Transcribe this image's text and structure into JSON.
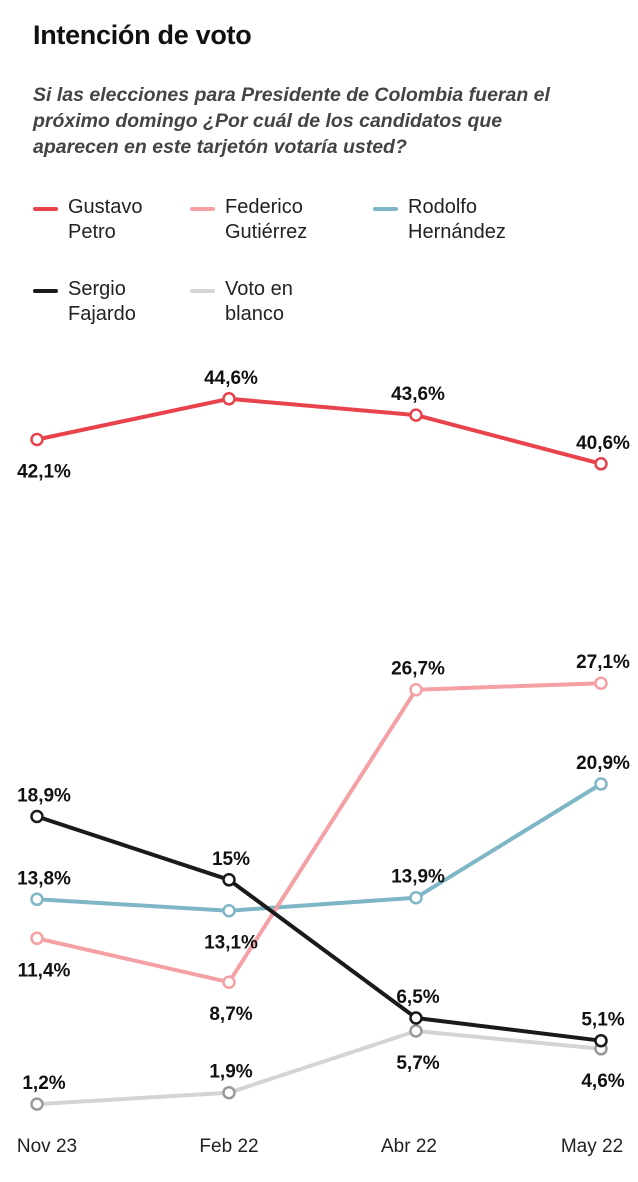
{
  "header": {
    "title": "Intención de voto",
    "subtitle": "Si las elecciones para Presidente de Colombia fueran el próximo domingo ¿Por cuál de los candidatos que aparecen en este tarjetón votaría usted?"
  },
  "legend": [
    {
      "line1": "Gustavo",
      "line2": "Petro",
      "color": "#e8424c"
    },
    {
      "line1": "Federico",
      "line2": "Gutiérrez",
      "color": "#f4a0a4"
    },
    {
      "line1": "Rodolfo",
      "line2": "Hernández",
      "color": "#7fb6c6"
    },
    {
      "line1": "Sergio",
      "line2": "Fajardo",
      "color": "#1a1a1a"
    },
    {
      "line1": "Voto en",
      "line2": "blanco",
      "color": "#d4d4d4"
    }
  ],
  "chart_data": {
    "type": "line",
    "categories": [
      "Nov 23",
      "Feb 22",
      "Abr 22",
      "May 22"
    ],
    "grid": false,
    "series": [
      {
        "name": "Gustavo Petro",
        "color": "#e8424c",
        "values": [
          42.1,
          44.6,
          43.6,
          40.6
        ],
        "labels": [
          "42,1%",
          "44,6%",
          "43,6%",
          "40,6%"
        ]
      },
      {
        "name": "Federico Gutiérrez",
        "color": "#f4a0a4",
        "values": [
          11.4,
          8.7,
          26.7,
          27.1
        ],
        "labels": [
          "11,4%",
          "8,7%",
          "26,7%",
          "27,1%"
        ]
      },
      {
        "name": "Rodolfo Hernández",
        "color": "#7fb6c6",
        "values": [
          13.8,
          13.1,
          13.9,
          20.9
        ],
        "labels": [
          "13,8%",
          "13,1%",
          "13,9%",
          "20,9%"
        ]
      },
      {
        "name": "Sergio Fajardo",
        "color": "#1a1a1a",
        "values": [
          18.9,
          15,
          6.5,
          5.1
        ],
        "labels": [
          "18,9%",
          "15%",
          "6,5%",
          "5,1%"
        ]
      },
      {
        "name": "Voto en blanco",
        "color": "#d4d4d4",
        "marker_color": "#999999",
        "values": [
          1.2,
          1.9,
          5.7,
          4.6
        ],
        "labels": [
          "1,2%",
          "1,9%",
          "5,7%",
          "4,6%"
        ]
      }
    ]
  }
}
